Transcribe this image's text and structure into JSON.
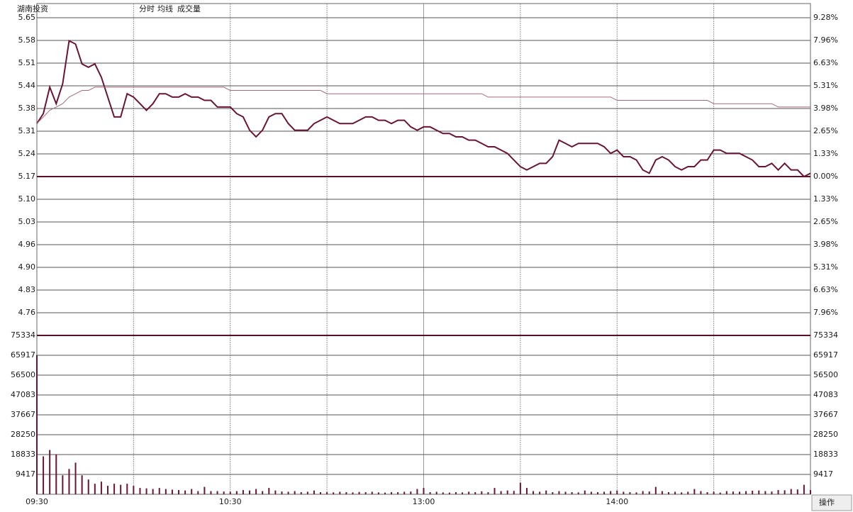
{
  "chart_data": [
    {
      "type": "line",
      "title": "湖南投资",
      "series": [
        {
          "name": "分时",
          "color": "#6a1436",
          "values": [
            5.33,
            5.36,
            5.44,
            5.39,
            5.45,
            5.58,
            5.57,
            5.51,
            5.5,
            5.51,
            5.47,
            5.41,
            5.35,
            5.35,
            5.42,
            5.41,
            5.39,
            5.37,
            5.39,
            5.42,
            5.42,
            5.41,
            5.41,
            5.42,
            5.41,
            5.41,
            5.4,
            5.4,
            5.38,
            5.38,
            5.38,
            5.36,
            5.35,
            5.31,
            5.29,
            5.31,
            5.35,
            5.36,
            5.36,
            5.33,
            5.31,
            5.31,
            5.31,
            5.33,
            5.34,
            5.35,
            5.34,
            5.33,
            5.33,
            5.33,
            5.34,
            5.35,
            5.35,
            5.34,
            5.34,
            5.33,
            5.34,
            5.34,
            5.32,
            5.31,
            5.32,
            5.32,
            5.31,
            5.3,
            5.3,
            5.29,
            5.29,
            5.28,
            5.28,
            5.27,
            5.26,
            5.26,
            5.25,
            5.24,
            5.22,
            5.2,
            5.19,
            5.2,
            5.21,
            5.21,
            5.23,
            5.28,
            5.27,
            5.26,
            5.27,
            5.27,
            5.27,
            5.27,
            5.26,
            5.24,
            5.25,
            5.23,
            5.23,
            5.22,
            5.19,
            5.18,
            5.22,
            5.23,
            5.22,
            5.2,
            5.19,
            5.2,
            5.2,
            5.22,
            5.22,
            5.25,
            5.25,
            5.24,
            5.24,
            5.24,
            5.23,
            5.22,
            5.2,
            5.2,
            5.21,
            5.19,
            5.21,
            5.19,
            5.19,
            5.17,
            5.18
          ]
        },
        {
          "name": "均线",
          "color": "#a86a78",
          "values": [
            5.33,
            5.35,
            5.37,
            5.38,
            5.39,
            5.41,
            5.42,
            5.43,
            5.43,
            5.44,
            5.44,
            5.44,
            5.44,
            5.44,
            5.44,
            5.44,
            5.44,
            5.44,
            5.44,
            5.44,
            5.44,
            5.44,
            5.44,
            5.44,
            5.44,
            5.44,
            5.44,
            5.44,
            5.44,
            5.44,
            5.43,
            5.43,
            5.43,
            5.43,
            5.43,
            5.43,
            5.43,
            5.43,
            5.43,
            5.43,
            5.43,
            5.43,
            5.43,
            5.43,
            5.43,
            5.42,
            5.42,
            5.42,
            5.42,
            5.42,
            5.42,
            5.42,
            5.42,
            5.42,
            5.42,
            5.42,
            5.42,
            5.42,
            5.42,
            5.42,
            5.42,
            5.42,
            5.42,
            5.42,
            5.42,
            5.42,
            5.42,
            5.42,
            5.42,
            5.42,
            5.41,
            5.41,
            5.41,
            5.41,
            5.41,
            5.41,
            5.41,
            5.41,
            5.41,
            5.41,
            5.41,
            5.41,
            5.41,
            5.41,
            5.41,
            5.41,
            5.41,
            5.41,
            5.41,
            5.41,
            5.4,
            5.4,
            5.4,
            5.4,
            5.4,
            5.4,
            5.4,
            5.4,
            5.4,
            5.4,
            5.4,
            5.4,
            5.4,
            5.4,
            5.4,
            5.39,
            5.39,
            5.39,
            5.39,
            5.39,
            5.39,
            5.39,
            5.39,
            5.39,
            5.39,
            5.38,
            5.38,
            5.38,
            5.38,
            5.38,
            5.38
          ]
        }
      ],
      "ylim": [
        4.6905,
        5.6495
      ],
      "yticks": [
        {
          "value": 5.6495,
          "label": "5.65"
        },
        {
          "value": 5.581,
          "label": "5.58"
        },
        {
          "value": 5.5125,
          "label": "5.51"
        },
        {
          "value": 5.444,
          "label": "5.44"
        },
        {
          "value": 5.3755,
          "label": "5.38"
        },
        {
          "value": 5.307,
          "label": "5.31"
        },
        {
          "value": 5.2385,
          "label": "5.24"
        },
        5.17,
        {
          "value": 5.1015,
          "label": "5.10"
        },
        {
          "value": 5.033,
          "label": "5.03"
        },
        {
          "value": 4.9645,
          "label": "4.96"
        },
        {
          "value": 4.896,
          "label": "4.90"
        },
        {
          "value": 4.8275,
          "label": "4.83"
        },
        {
          "value": 4.759,
          "label": "4.76"
        }
      ],
      "y2lim": [
        -9.28,
        9.28
      ],
      "y2ticks": [
        {
          "value": 9.28,
          "label": "9.28%"
        },
        {
          "value": 7.96,
          "label": "7.96%"
        },
        {
          "value": 6.63,
          "label": "6.63%"
        },
        {
          "value": 5.31,
          "label": "5.31%"
        },
        {
          "value": 3.98,
          "label": "3.98%"
        },
        {
          "value": 2.65,
          "label": "2.65%"
        },
        {
          "value": 1.33,
          "label": "1.33%"
        },
        {
          "value": 0,
          "label": "0.00%"
        },
        {
          "value": -1.33,
          "label": "1.33%"
        },
        {
          "value": -2.65,
          "label": "2.65%"
        },
        {
          "value": -3.98,
          "label": "3.98%"
        },
        {
          "value": -5.31,
          "label": "5.31%"
        },
        {
          "value": -6.63,
          "label": "6.63%"
        },
        {
          "value": -7.96,
          "label": "7.96%"
        }
      ],
      "grid": true
    },
    {
      "type": "bar",
      "x": [
        "09:30",
        "09:32",
        "09:34",
        "09:36",
        "09:38",
        "09:40",
        "09:42",
        "09:44",
        "09:46",
        "09:48",
        "09:50",
        "09:52",
        "09:54",
        "09:56",
        "09:58",
        "10:00",
        "10:02",
        "10:04",
        "10:06",
        "10:08",
        "10:10",
        "10:12",
        "10:14",
        "10:16",
        "10:18",
        "10:20",
        "10:22",
        "10:24",
        "10:26",
        "10:28",
        "10:30",
        "10:32",
        "10:34",
        "10:36",
        "10:38",
        "10:40",
        "10:42",
        "10:44",
        "10:46",
        "10:48",
        "10:50",
        "10:52",
        "10:54",
        "10:56",
        "10:58",
        "11:00",
        "11:02",
        "11:04",
        "11:06",
        "11:08",
        "11:10",
        "11:12",
        "11:14",
        "11:16",
        "11:18",
        "11:20",
        "11:22",
        "11:24",
        "11:26",
        "11:28",
        "13:00",
        "13:02",
        "13:04",
        "13:06",
        "13:08",
        "13:10",
        "13:12",
        "13:14",
        "13:16",
        "13:18",
        "13:20",
        "13:22",
        "13:24",
        "13:26",
        "13:28",
        "13:30",
        "13:32",
        "13:34",
        "13:36",
        "13:38",
        "13:40",
        "13:42",
        "13:44",
        "13:46",
        "13:48",
        "13:50",
        "13:52",
        "13:54",
        "13:56",
        "13:58",
        "14:00",
        "14:02",
        "14:04",
        "14:06",
        "14:08",
        "14:10",
        "14:12",
        "14:14",
        "14:16",
        "14:18",
        "14:20",
        "14:22",
        "14:24",
        "14:26",
        "14:28",
        "14:30",
        "14:32",
        "14:34",
        "14:36",
        "14:38",
        "14:40",
        "14:42",
        "14:44",
        "14:46",
        "14:48",
        "14:50",
        "14:52",
        "14:54",
        "14:56",
        "14:58",
        "15:00"
      ],
      "series": [
        {
          "name": "成交量",
          "color": "#6a1436",
          "values": [
            66000,
            18000,
            21000,
            19000,
            9000,
            12000,
            15000,
            9000,
            7000,
            5000,
            6000,
            4000,
            5000,
            4500,
            5000,
            4000,
            3000,
            2800,
            2500,
            3000,
            2500,
            2200,
            2000,
            1800,
            2500,
            1500,
            3500,
            1500,
            1500,
            1300,
            1200,
            1500,
            2000,
            1800,
            2500,
            1500,
            3000,
            1800,
            1300,
            1200,
            1500,
            1000,
            1200,
            1800,
            1000,
            1000,
            900,
            1200,
            1000,
            900,
            1100,
            1000,
            1200,
            900,
            800,
            1000,
            1000,
            1200,
            1300,
            2500,
            3000,
            1000,
            1200,
            900,
            800,
            1000,
            900,
            1200,
            1000,
            1400,
            1000,
            3000,
            1500,
            1800,
            1600,
            5500,
            3000,
            1500,
            1200,
            1800,
            1000,
            1500,
            1200,
            1000,
            900,
            1800,
            1200,
            1000,
            1200,
            1500,
            1800,
            1200,
            1000,
            900,
            1500,
            1300,
            3500,
            1500,
            1000,
            1200,
            900,
            1200,
            2500,
            1500,
            1000,
            1200,
            800,
            1500,
            1300,
            1200,
            1500,
            1700,
            1800,
            1500,
            1300,
            2000,
            1900,
            2500,
            2300,
            4500,
            2000
          ]
        }
      ],
      "ylim": [
        0,
        75334
      ],
      "yticks": [
        75334,
        65917,
        56500,
        47083,
        37667,
        28250,
        18833,
        9417
      ],
      "xticks": [
        "09:30",
        "10:30",
        "13:00",
        "14:00"
      ],
      "grid": true
    }
  ],
  "toolbar": {
    "button": "操作"
  }
}
